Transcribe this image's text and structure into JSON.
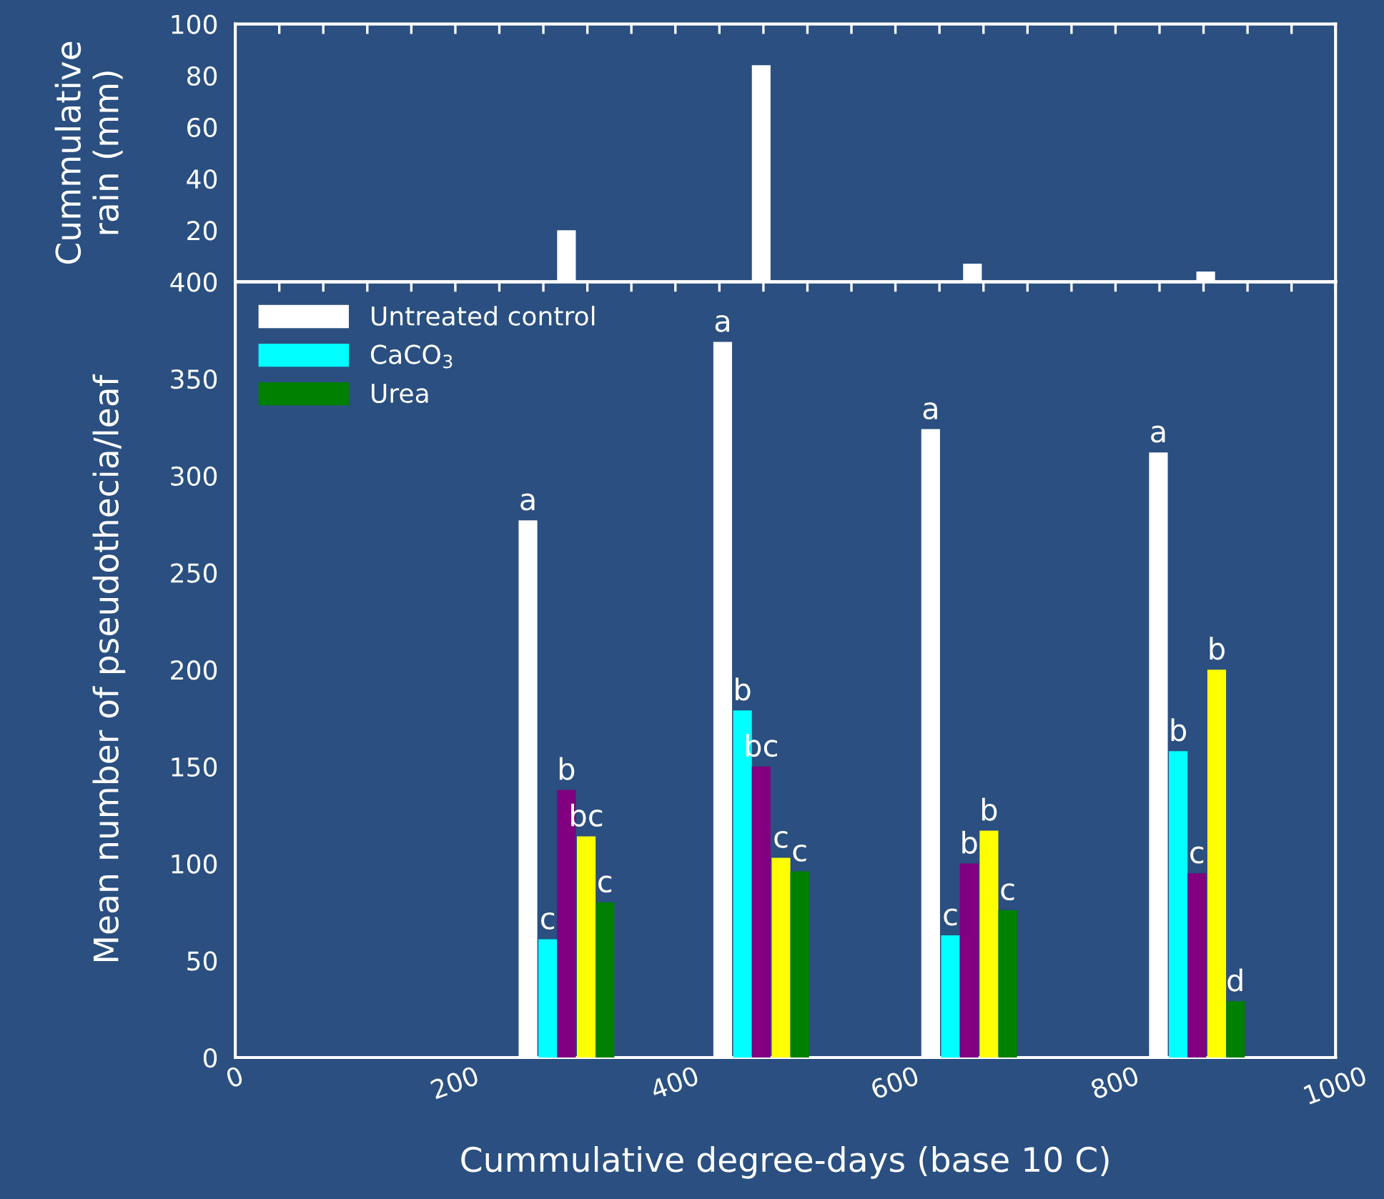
{
  "chart_data": [
    {
      "type": "bar",
      "ylabel": "Cummulative\nrain (mm)",
      "xlim": [
        0,
        1000
      ],
      "ylim": [
        0,
        100
      ],
      "tick_labels": "y",
      "xticks": [
        0,
        40,
        80,
        120,
        160,
        200,
        240,
        280,
        320,
        360,
        400,
        440,
        480,
        520,
        560,
        600,
        640,
        680,
        720,
        760,
        800,
        840,
        880,
        920,
        960,
        1000
      ],
      "yticks": [
        {
          "value": 0,
          "label": null
        },
        20,
        40,
        60,
        80,
        100
      ],
      "series": [
        {
          "color": "#ffffff",
          "x": [
            301,
            478,
            670,
            882
          ],
          "values": [
            20,
            84,
            7,
            4
          ]
        }
      ]
    },
    {
      "type": "bar",
      "xlabel": "Cummulative degree-days (base 10 C)",
      "ylabel": "Mean number of pseudothecia/leaf",
      "xlim": [
        0,
        1000
      ],
      "ylim": [
        0,
        400
      ],
      "legend": "top left",
      "xticks": [
        0,
        {
          "value": 40,
          "label": null
        },
        {
          "value": 80,
          "label": null
        },
        {
          "value": 120,
          "label": null
        },
        {
          "value": 160,
          "label": null
        },
        200,
        {
          "value": 240,
          "label": null
        },
        {
          "value": 280,
          "label": null
        },
        {
          "value": 320,
          "label": null
        },
        {
          "value": 360,
          "label": null
        },
        400,
        {
          "value": 440,
          "label": null
        },
        {
          "value": 480,
          "label": null
        },
        {
          "value": 520,
          "label": null
        },
        {
          "value": 560,
          "label": null
        },
        600,
        {
          "value": 640,
          "label": null
        },
        {
          "value": 680,
          "label": null
        },
        {
          "value": 720,
          "label": null
        },
        {
          "value": 760,
          "label": null
        },
        800,
        {
          "value": 840,
          "label": null
        },
        {
          "value": 880,
          "label": null
        },
        {
          "value": 920,
          "label": null
        },
        {
          "value": 960,
          "label": null
        },
        1000
      ],
      "yticks": [
        0,
        50,
        100,
        150,
        200,
        250,
        300,
        350,
        400
      ],
      "series": [
        {
          "name": "Untreated control",
          "color": "#ffffff",
          "x": [
            266,
            443,
            632,
            839
          ],
          "values": [
            277,
            369,
            324,
            312
          ]
        },
        {
          "name": "CaCO$_{3}$",
          "color": "#00ffff",
          "x": [
            284,
            461,
            650,
            857
          ],
          "values": [
            61,
            179,
            63,
            158
          ]
        },
        {
          "color": "#800080",
          "x": [
            301,
            478,
            667,
            874
          ],
          "values": [
            138,
            150,
            100,
            95
          ]
        },
        {
          "color": "#ffff00",
          "x": [
            319,
            496,
            685,
            892
          ],
          "values": [
            114,
            103,
            117,
            200
          ]
        },
        {
          "name": "Urea",
          "color": "#008000",
          "x": [
            336,
            513,
            702,
            909
          ],
          "values": [
            80,
            96,
            76,
            29
          ]
        }
      ],
      "annotations": [
        {
          "text": "a",
          "x": 266,
          "y": 277
        },
        {
          "text": "c",
          "x": 284,
          "y": 61
        },
        {
          "text": "b",
          "x": 301,
          "y": 138
        },
        {
          "text": "bc",
          "x": 319,
          "y": 114
        },
        {
          "text": "c",
          "x": 336,
          "y": 80
        },
        {
          "text": "a",
          "x": 443,
          "y": 369
        },
        {
          "text": "b",
          "x": 461,
          "y": 179
        },
        {
          "text": "bc",
          "x": 478,
          "y": 150
        },
        {
          "text": "c",
          "x": 496,
          "y": 103
        },
        {
          "text": "c",
          "x": 513,
          "y": 96
        },
        {
          "text": "a",
          "x": 632,
          "y": 324
        },
        {
          "text": "c",
          "x": 650,
          "y": 63
        },
        {
          "text": "b",
          "x": 667,
          "y": 100
        },
        {
          "text": "b",
          "x": 685,
          "y": 117
        },
        {
          "text": "c",
          "x": 702,
          "y": 76
        },
        {
          "text": "a",
          "x": 839,
          "y": 312
        },
        {
          "text": "b",
          "x": 857,
          "y": 158
        },
        {
          "text": "c",
          "x": 874,
          "y": 95
        },
        {
          "text": "b",
          "x": 892,
          "y": 200
        },
        {
          "text": "d",
          "x": 909,
          "y": 29
        }
      ]
    }
  ]
}
